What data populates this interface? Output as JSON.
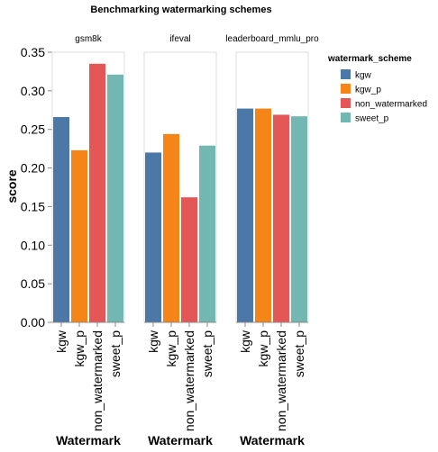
{
  "chart_data": {
    "type": "bar",
    "title": "Benchmarking watermarking schemes",
    "ylabel": "score",
    "xlabel": "Watermark",
    "ylim": [
      0,
      0.35
    ],
    "yticks": [
      "0.00",
      "0.05",
      "0.10",
      "0.15",
      "0.20",
      "0.25",
      "0.30",
      "0.35"
    ],
    "grid": false,
    "legend": {
      "title": "watermark_scheme",
      "position": "top-right",
      "entries": [
        "kgw",
        "kgw_p",
        "non_watermarked",
        "sweet_p"
      ]
    },
    "colors": {
      "kgw": "#4c78a8",
      "kgw_p": "#f58518",
      "non_watermarked": "#e45756",
      "sweet_p": "#72b7b2"
    },
    "categories": [
      "kgw",
      "kgw_p",
      "non_watermarked",
      "sweet_p"
    ],
    "facets": [
      {
        "name": "gsm8k",
        "values": [
          0.266,
          0.223,
          0.335,
          0.321
        ]
      },
      {
        "name": "ifeval",
        "values": [
          0.22,
          0.244,
          0.162,
          0.229
        ]
      },
      {
        "name": "leaderboard_mmlu_pro",
        "values": [
          0.277,
          0.277,
          0.269,
          0.267
        ]
      }
    ]
  }
}
